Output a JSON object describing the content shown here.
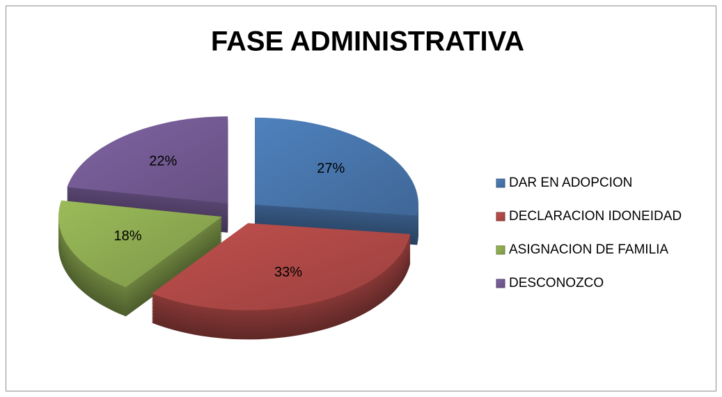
{
  "chart_data": {
    "type": "pie",
    "title": "FASE ADMINISTRATIVA",
    "categories": [
      "DAR EN ADOPCION",
      "DECLARACION IDONEIDAD",
      "ASIGNACION DE FAMILIA",
      "DESCONOZCO"
    ],
    "values": [
      27,
      33,
      18,
      22
    ],
    "value_labels": [
      "27%",
      "33%",
      "18%",
      "22%"
    ],
    "colors": [
      "#4f81bd",
      "#c0504d",
      "#9bbb59",
      "#8064a2"
    ],
    "legend": "right"
  }
}
